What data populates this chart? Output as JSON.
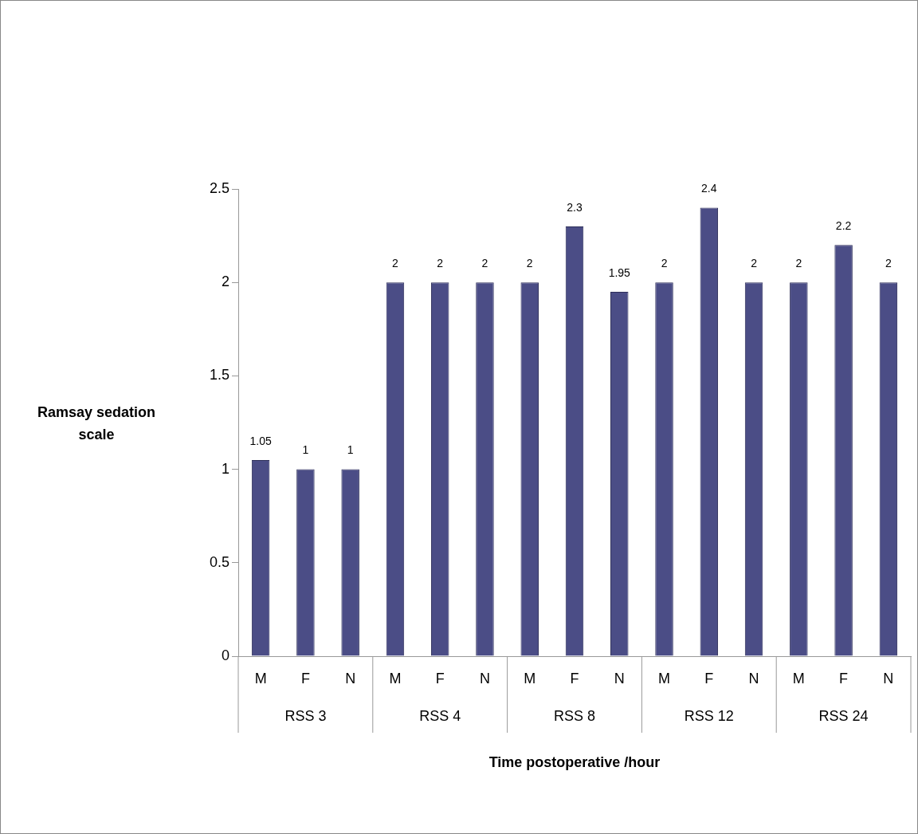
{
  "chart_data": {
    "type": "bar",
    "categories": [
      "M",
      "F",
      "N",
      "M",
      "F",
      "N",
      "M",
      "F",
      "N",
      "M",
      "F",
      "N",
      "M",
      "F",
      "N"
    ],
    "values": [
      1.05,
      1,
      1,
      2,
      2,
      2,
      2,
      2.3,
      1.95,
      2,
      2.4,
      2,
      2,
      2.2,
      2
    ],
    "color": "#4b4d86",
    "ylim": [
      0,
      2.5
    ],
    "yticks": [
      0,
      0.5,
      1,
      1.5,
      2,
      2.5
    ],
    "xlabel": "Time postoperative /hour",
    "ylabel": "Ramsay sedation scale",
    "annotations": [
      "RSS 3",
      "RSS 4",
      "RSS 8",
      "RSS 12",
      "RSS 24"
    ],
    "data_labels": true,
    "grid": false,
    "legend": false
  }
}
